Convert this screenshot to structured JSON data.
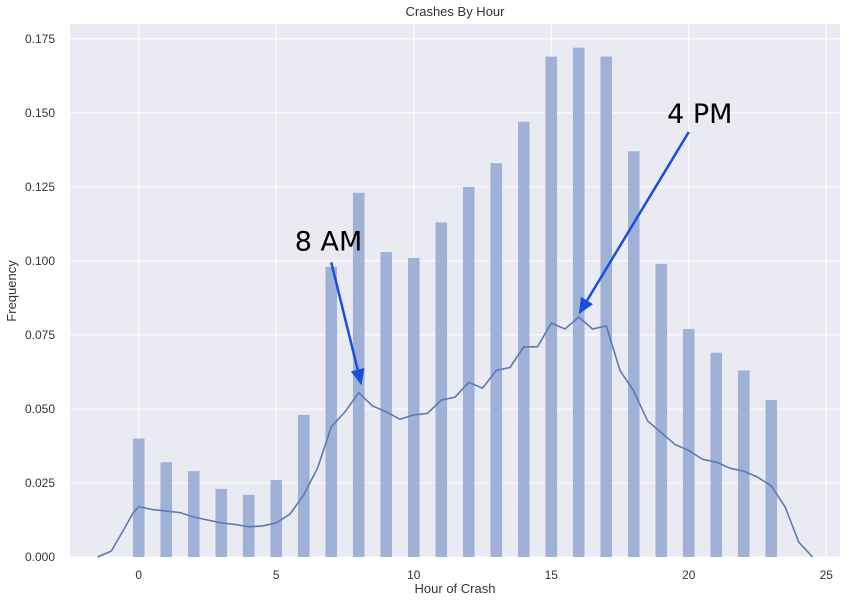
{
  "chart_data": {
    "type": "bar",
    "title": "Crashes By Hour",
    "xlabel": "Hour of Crash",
    "ylabel": "Frequency",
    "xlim": [
      -2.5,
      25.5
    ],
    "ylim": [
      0,
      0.18
    ],
    "x_ticks": [
      0,
      5,
      10,
      15,
      20,
      25
    ],
    "y_ticks": [
      0.0,
      0.025,
      0.05,
      0.075,
      0.1,
      0.125,
      0.15,
      0.175
    ],
    "y_tick_labels": [
      "0.000",
      "0.025",
      "0.050",
      "0.075",
      "0.100",
      "0.125",
      "0.150",
      "0.175"
    ],
    "grid": true,
    "background": "#eaeaf2",
    "bar_color": "#9fb1d6",
    "line_color": "#5a7ab5",
    "arrow_color": "#1a4fdb",
    "histogram": {
      "hours": [
        0,
        1,
        2,
        3,
        4,
        5,
        6,
        7,
        8,
        9,
        10,
        11,
        12,
        13,
        14,
        15,
        16,
        17,
        18,
        19,
        20,
        21,
        22,
        23
      ],
      "values": [
        0.04,
        0.032,
        0.029,
        0.023,
        0.021,
        0.026,
        0.048,
        0.098,
        0.123,
        0.103,
        0.101,
        0.113,
        0.125,
        0.133,
        0.147,
        0.169,
        0.172,
        0.169,
        0.137,
        0.099,
        0.077,
        0.069,
        0.063,
        0.053
      ]
    },
    "kde": {
      "x": [
        -1.5,
        -1.0,
        -0.5,
        -0.2,
        0.0,
        0.5,
        1.0,
        1.5,
        2.0,
        2.5,
        3.0,
        3.5,
        4.0,
        4.5,
        5.0,
        5.5,
        6.0,
        6.5,
        7.0,
        7.5,
        8.0,
        8.5,
        9.0,
        9.5,
        10.0,
        10.5,
        11.0,
        11.5,
        12.0,
        12.5,
        13.0,
        13.5,
        14.0,
        14.5,
        15.0,
        15.5,
        16.0,
        16.5,
        17.0,
        17.5,
        18.0,
        18.5,
        19.0,
        19.5,
        20.0,
        20.5,
        21.0,
        21.5,
        22.0,
        22.5,
        23.0,
        23.5,
        24.0,
        24.5
      ],
      "y": [
        0.0,
        0.002,
        0.01,
        0.015,
        0.017,
        0.016,
        0.0155,
        0.015,
        0.0135,
        0.0125,
        0.0115,
        0.011,
        0.0102,
        0.0105,
        0.0115,
        0.0145,
        0.021,
        0.03,
        0.044,
        0.049,
        0.0555,
        0.051,
        0.049,
        0.0465,
        0.048,
        0.0485,
        0.053,
        0.054,
        0.059,
        0.057,
        0.063,
        0.064,
        0.071,
        0.071,
        0.079,
        0.077,
        0.081,
        0.077,
        0.078,
        0.063,
        0.056,
        0.046,
        0.042,
        0.038,
        0.036,
        0.033,
        0.032,
        0.03,
        0.029,
        0.027,
        0.024,
        0.017,
        0.005,
        0.0
      ]
    },
    "annotations": [
      {
        "text": "8 AM",
        "label_hour": 6.9,
        "label_value": 0.1035,
        "arrow_from_hour": 7.0,
        "arrow_from_value": 0.0995,
        "arrow_to_hour": 8.1,
        "arrow_to_value": 0.058
      },
      {
        "text": "4 PM",
        "label_hour": 20.4,
        "label_value": 0.1465,
        "arrow_from_hour": 20.0,
        "arrow_from_value": 0.1435,
        "arrow_to_hour": 16.0,
        "arrow_to_value": 0.082
      }
    ]
  }
}
